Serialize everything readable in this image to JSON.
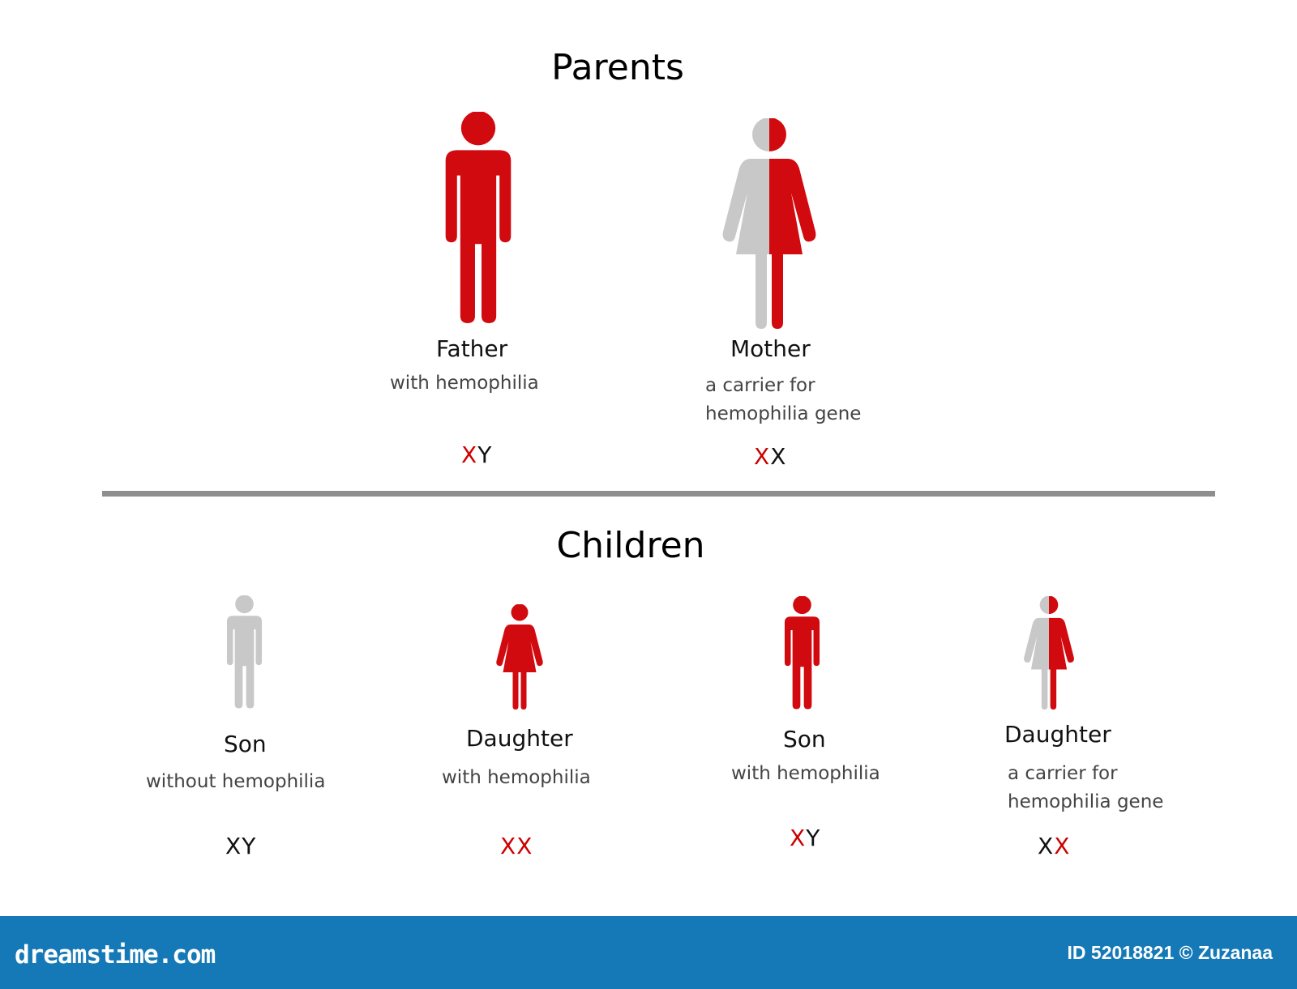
{
  "colors": {
    "affected": "#d10a0f",
    "unaffected": "#c8c8c8",
    "normal_chromosome": "#111111",
    "affected_chromosome": "#cc0000",
    "divider": "#8e8e8e",
    "footer": "#1479b6"
  },
  "parents": {
    "title": "Parents",
    "father": {
      "label": "Father",
      "description": "with hemophilia",
      "icon": "male-figure-icon",
      "status": "affected",
      "genotype": [
        {
          "letter": "X",
          "affected": true
        },
        {
          "letter": "Y",
          "affected": false
        }
      ]
    },
    "mother": {
      "label": "Mother",
      "description_line1": "a carrier for",
      "description_line2": "hemophilia gene",
      "icon": "female-figure-icon",
      "status": "carrier",
      "genotype": [
        {
          "letter": "X",
          "affected": true
        },
        {
          "letter": "X",
          "affected": false
        }
      ]
    }
  },
  "children": {
    "title": "Children",
    "items": [
      {
        "label": "Son",
        "description": "without hemophilia",
        "icon": "male-figure-icon",
        "status": "unaffected",
        "genotype": [
          {
            "letter": "X",
            "affected": false
          },
          {
            "letter": "Y",
            "affected": false
          }
        ]
      },
      {
        "label": "Daughter",
        "description": "with hemophilia",
        "icon": "female-figure-icon",
        "status": "affected",
        "genotype": [
          {
            "letter": "X",
            "affected": true
          },
          {
            "letter": "X",
            "affected": true
          }
        ]
      },
      {
        "label": "Son",
        "description": "with hemophilia",
        "icon": "male-figure-icon",
        "status": "affected",
        "genotype": [
          {
            "letter": "X",
            "affected": true
          },
          {
            "letter": "Y",
            "affected": false
          }
        ]
      },
      {
        "label": "Daughter",
        "description_line1": "a carrier for",
        "description_line2": "hemophilia gene",
        "icon": "female-figure-icon",
        "status": "carrier",
        "genotype": [
          {
            "letter": "X",
            "affected": false
          },
          {
            "letter": "X",
            "affected": true
          }
        ]
      }
    ]
  },
  "footer": {
    "brand": "dreamstime.com",
    "credit": "ID 52018821 © Zuzanaa"
  }
}
